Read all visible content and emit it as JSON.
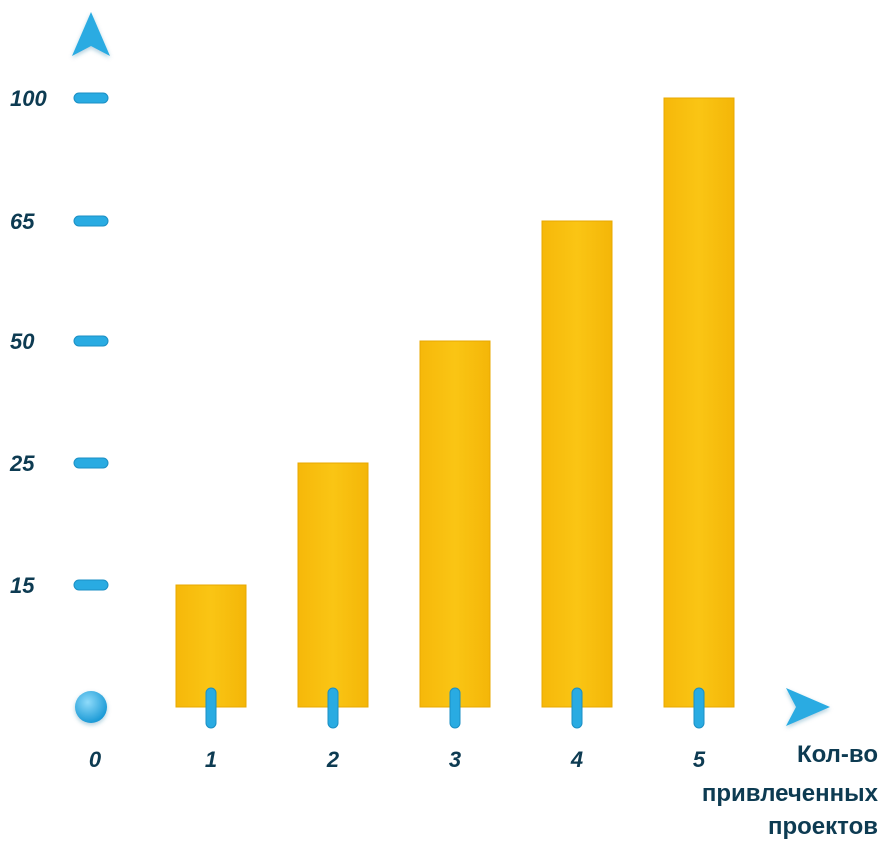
{
  "colors": {
    "axis": "#29ABE2",
    "axis_dark": "#1B8FC4",
    "bar": "#F9C10F",
    "bar_edge": "#E8A800",
    "label": "#0D3B52"
  },
  "chart_data": {
    "type": "bar",
    "categories": [
      "1",
      "2",
      "3",
      "4",
      "5"
    ],
    "values": [
      15,
      25,
      50,
      65,
      100
    ],
    "x_origin_label": "0",
    "y_ticks": [
      "15",
      "25",
      "50",
      "65",
      "100"
    ],
    "xlabel_lines": [
      "Кол-во",
      "привлеченных",
      "проектов"
    ],
    "ylabel": "",
    "title": "",
    "grid": false,
    "legend": "none",
    "y_scale": "ordinal (ticks evenly spaced)"
  }
}
